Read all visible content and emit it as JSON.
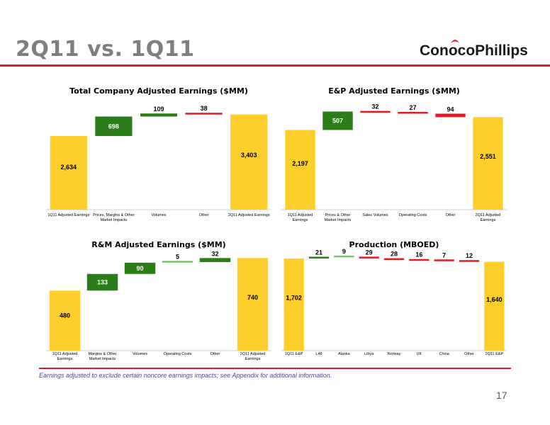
{
  "slide": {
    "title": "2Q11 vs. 1Q11",
    "logo_text": "ConocoPhillips",
    "footnote": "Earnings adjusted to exclude certain noncore earnings impacts; see Appendix for additional information.",
    "page_number": "17"
  },
  "colors": {
    "yellow": "#fecf2a",
    "green": "#2a7d18",
    "light_green": "#7dc36c",
    "red": "#e21b23",
    "rule_red": "#e21b23"
  },
  "chart_data": [
    {
      "type": "bar",
      "subtype": "waterfall",
      "title": "Total Company Adjusted Earnings ($MM)",
      "categories": [
        "1Q11 Adjusted Earnings",
        "Prices, Margins & Other Market Impacts",
        "Volumes",
        "Other",
        "2Q11 Adjusted Earnings"
      ],
      "display_labels": [
        "2,634",
        "698",
        "109",
        "38",
        "3,403"
      ],
      "values": [
        2634,
        698,
        109,
        -38,
        3403
      ],
      "kinds": [
        "total",
        "delta",
        "delta",
        "delta",
        "total"
      ],
      "bar_colors": [
        "yellow",
        "green",
        "green",
        "red",
        "yellow"
      ],
      "ylim": [
        0,
        3700
      ]
    },
    {
      "type": "bar",
      "subtype": "waterfall",
      "title": "E&P Adjusted Earnings ($MM)",
      "categories": [
        "1Q11 Adjusted Earnings",
        "Prices & Other Market Impacts",
        "Sales Volumes",
        "Operating Costs",
        "Other",
        "2Q11 Adjusted Earnings"
      ],
      "display_labels": [
        "2,197",
        "507",
        "32",
        "27",
        "94",
        "2,551"
      ],
      "values": [
        2197,
        507,
        -32,
        -27,
        -94,
        2551
      ],
      "kinds": [
        "total",
        "delta",
        "delta",
        "delta",
        "delta",
        "total"
      ],
      "bar_colors": [
        "yellow",
        "green",
        "red",
        "red",
        "red",
        "yellow"
      ],
      "ylim": [
        0,
        2850
      ]
    },
    {
      "type": "bar",
      "subtype": "waterfall",
      "title": "R&M Adjusted Earnings ($MM)",
      "categories": [
        "1Q11 Adjusted Earnings",
        "Margins & Other Market Impacts",
        "Volumes",
        "Operating Costs",
        "Other",
        "2Q11 Adjusted Earnings"
      ],
      "display_labels": [
        "480",
        "133",
        "90",
        "5",
        "32",
        "740"
      ],
      "values": [
        480,
        133,
        90,
        5,
        32,
        740
      ],
      "kinds": [
        "total",
        "delta",
        "delta",
        "delta",
        "delta",
        "total"
      ],
      "bar_colors": [
        "yellow",
        "green",
        "green",
        "light_green",
        "green",
        "yellow"
      ],
      "ylim": [
        0,
        770
      ]
    },
    {
      "type": "bar",
      "subtype": "waterfall",
      "title": "Production (MBOED)",
      "categories": [
        "1Q11 E&P",
        "L48",
        "Alaska",
        "Libya",
        "Norway",
        "UK",
        "China",
        "Other",
        "2Q11 E&P"
      ],
      "display_labels": [
        "1,702",
        "21",
        "9",
        "29",
        "28",
        "16",
        "7",
        "12",
        "1,640"
      ],
      "values": [
        1702,
        21,
        9,
        -29,
        -28,
        -16,
        -7,
        -12,
        1640
      ],
      "kinds": [
        "total",
        "delta",
        "delta",
        "delta",
        "delta",
        "delta",
        "delta",
        "delta",
        "total"
      ],
      "bar_colors": [
        "yellow",
        "green",
        "light_green",
        "red",
        "red",
        "red",
        "red",
        "red",
        "yellow"
      ],
      "ylim": [
        0,
        1780
      ]
    }
  ]
}
